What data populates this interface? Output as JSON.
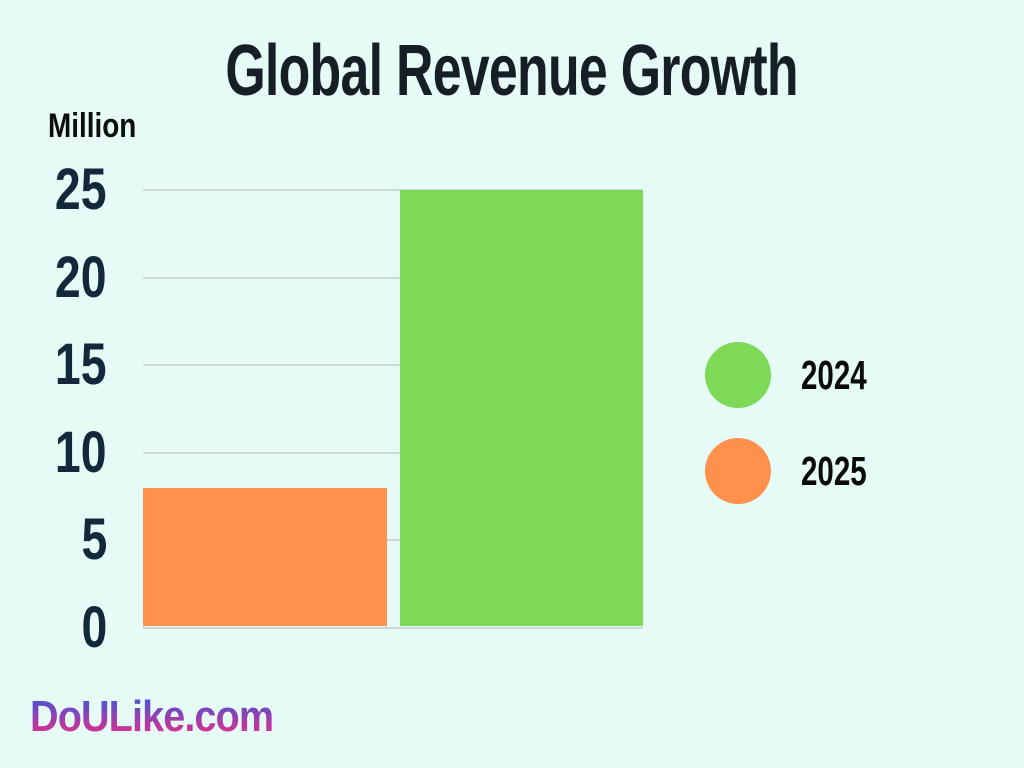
{
  "page": {
    "background_color": "#E6FAF6"
  },
  "chart_data": {
    "type": "bar",
    "title": "Global Revenue Growth",
    "y_unit_label": "Million",
    "xlabel": "",
    "ylabel": "Million",
    "ylim": [
      0,
      25
    ],
    "yticks": [
      25,
      20,
      15,
      10,
      5,
      0
    ],
    "grid": "horizontal",
    "legend_position": "right",
    "categories": [
      "2025",
      "2024"
    ],
    "series": [
      {
        "name": "2025",
        "value": 8,
        "color": "#FF914D"
      },
      {
        "name": "2024",
        "value": 25,
        "color": "#7ED957"
      }
    ],
    "legend": [
      {
        "label": "2024",
        "color": "#7ED957"
      },
      {
        "label": "2025",
        "color": "#FF914D"
      }
    ]
  },
  "branding": {
    "text": "DoULike.com",
    "gradient_top": "#4355D6",
    "gradient_bottom": "#DF2F90"
  },
  "colors": {
    "title": "#171F26",
    "tick_label": "#13293B",
    "gridline": "#CDD9D9",
    "legend_text": "#0B0B0B"
  }
}
